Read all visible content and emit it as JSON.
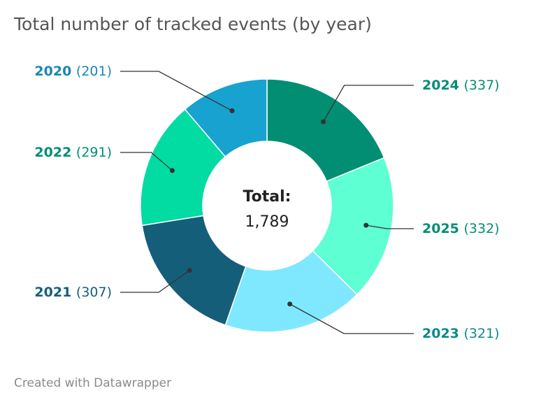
{
  "chart_data": {
    "type": "pie",
    "subtype": "donut",
    "title": "Total number of tracked events (by year)",
    "center_label": "Total:",
    "center_value": "1,789",
    "credit": "Created with Datawrapper",
    "slices": [
      {
        "label": "2024",
        "value": 337,
        "value_text": "(337)",
        "color": "#018e73",
        "label_color": "#018e73",
        "side": "right"
      },
      {
        "label": "2025",
        "value": 332,
        "value_text": "(332)",
        "color": "#5dffd3",
        "label_color": "#018e73",
        "side": "right"
      },
      {
        "label": "2023",
        "value": 321,
        "value_text": "(321)",
        "color": "#7fe8ff",
        "label_color": "#0a8a8a",
        "side": "right"
      },
      {
        "label": "2021",
        "value": 307,
        "value_text": "(307)",
        "color": "#155e7a",
        "label_color": "#155e7a",
        "side": "left"
      },
      {
        "label": "2022",
        "value": 291,
        "value_text": "(291)",
        "color": "#02dba2",
        "label_color": "#018e73",
        "side": "left"
      },
      {
        "label": "2020",
        "value": 201,
        "value_text": "(201)",
        "color": "#18a2cf",
        "label_color": "#1887b8",
        "side": "left"
      }
    ]
  }
}
